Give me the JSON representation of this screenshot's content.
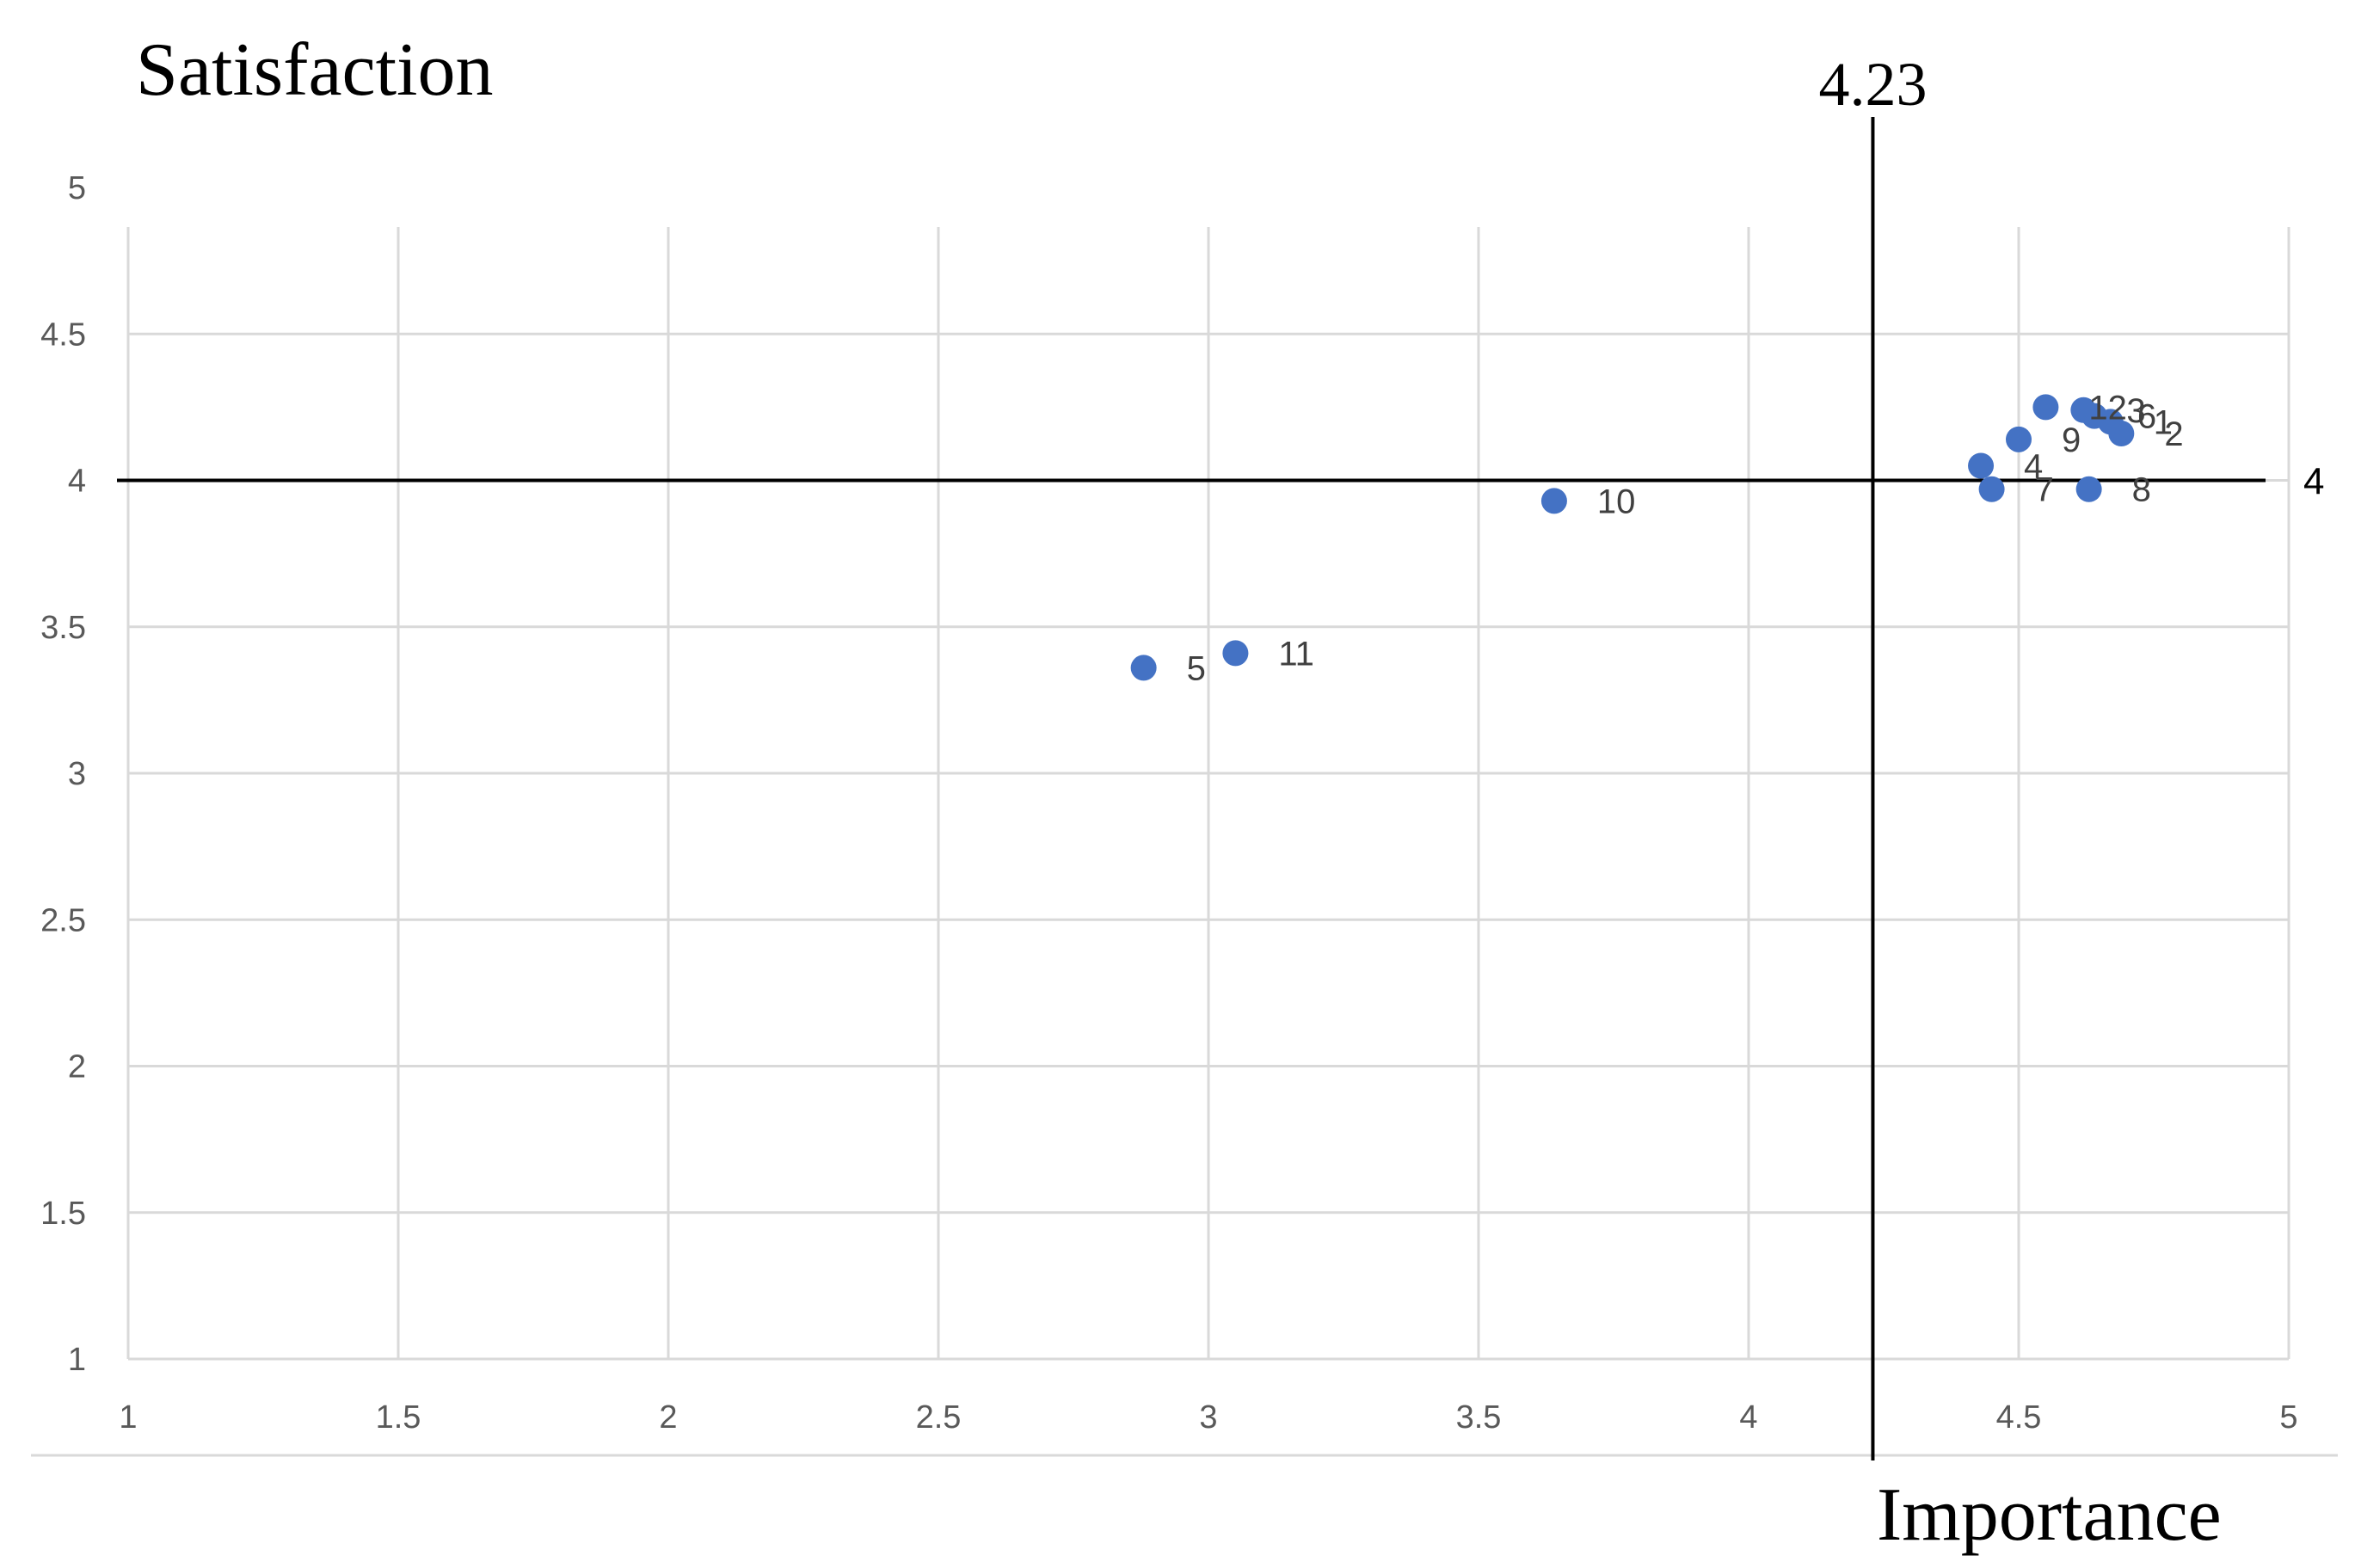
{
  "chart_data": {
    "type": "scatter",
    "title": "",
    "xlabel": "Importance",
    "ylabel": "Satisfaction",
    "xlim": [
      1,
      5
    ],
    "ylim": [
      1,
      5
    ],
    "x_ticks": [
      1,
      1.5,
      2,
      2.5,
      3,
      3.5,
      4,
      4.5,
      5
    ],
    "y_ticks": [
      1,
      1.5,
      2,
      2.5,
      3,
      3.5,
      4,
      4.5,
      5
    ],
    "x_tick_labels": [
      "1",
      "1.5",
      "2",
      "2.5",
      "3",
      "3.5",
      "4",
      "4.5",
      "5"
    ],
    "y_tick_labels": [
      "1",
      "1.5",
      "2",
      "2.5",
      "3",
      "3.5",
      "4",
      "4.5",
      "5"
    ],
    "grid": true,
    "legend": "none",
    "point_color": "#4472C4",
    "reference_lines": {
      "vertical": {
        "x": 4.23,
        "label": "4.23"
      },
      "horizontal": {
        "y": 4,
        "label": "4"
      }
    },
    "points": [
      {
        "label": "1",
        "x": 4.67,
        "y": 4.2
      },
      {
        "label": "2",
        "x": 4.69,
        "y": 4.16
      },
      {
        "label": "3",
        "x": 4.62,
        "y": 4.24
      },
      {
        "label": "4",
        "x": 4.43,
        "y": 4.05
      },
      {
        "label": "5",
        "x": 2.88,
        "y": 3.36
      },
      {
        "label": "6",
        "x": 4.64,
        "y": 4.22
      },
      {
        "label": "7",
        "x": 4.45,
        "y": 3.97
      },
      {
        "label": "8",
        "x": 4.63,
        "y": 3.97
      },
      {
        "label": "9",
        "x": 4.5,
        "y": 4.14
      },
      {
        "label": "10",
        "x": 3.64,
        "y": 3.93
      },
      {
        "label": "11",
        "x": 3.05,
        "y": 3.41
      },
      {
        "label": "12",
        "x": 4.55,
        "y": 4.25
      }
    ]
  }
}
